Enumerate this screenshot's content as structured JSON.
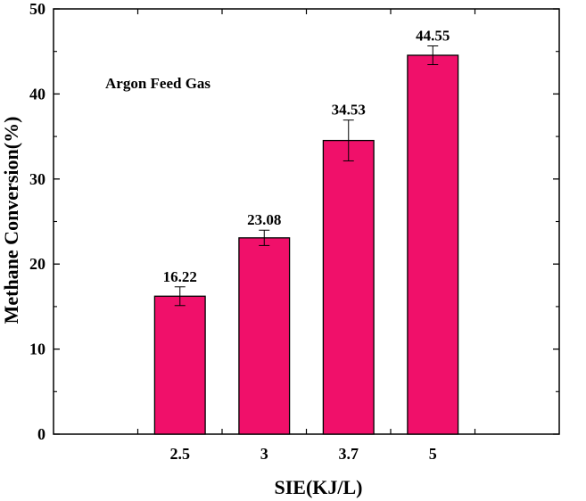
{
  "chart_data": {
    "type": "bar",
    "categories": [
      "2.5",
      "3",
      "3.7",
      "5"
    ],
    "values": [
      16.22,
      23.08,
      34.53,
      44.55
    ],
    "errors": [
      1.1,
      0.9,
      2.4,
      1.1
    ],
    "data_labels": [
      "16.22",
      "23.08",
      "34.53",
      "44.55"
    ],
    "title": "",
    "xlabel": "SIE(KJ/L)",
    "ylabel": "Methane Conversion(%)",
    "ylim": [
      0,
      50
    ],
    "yticks": [
      "0",
      "10",
      "20",
      "30",
      "40",
      "50"
    ],
    "annotation": "Argon Feed Gas",
    "legend": "none",
    "grid": false,
    "bar_color": "#f0106a",
    "edge_color": "#000000"
  }
}
